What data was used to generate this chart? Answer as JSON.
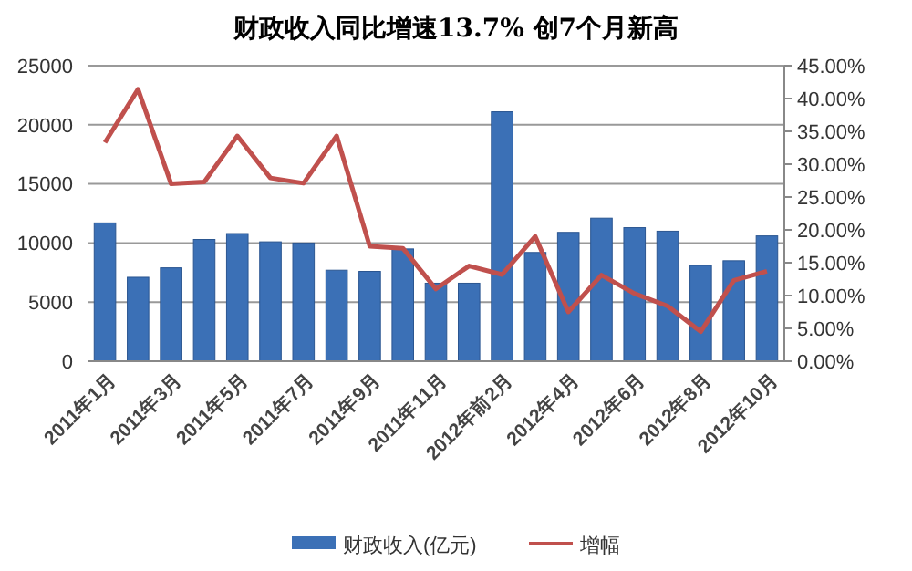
{
  "chart_data": {
    "type": "bar",
    "title": "财政收入同比增速13.7% 创7个月新高",
    "categories": [
      "2011年1月",
      null,
      "2011年3月",
      null,
      "2011年5月",
      null,
      "2011年7月",
      null,
      "2011年9月",
      null,
      "2011年11月",
      null,
      "2012年前2月",
      null,
      "2012年4月",
      null,
      "2012年6月",
      null,
      "2012年8月",
      null,
      "2012年10月"
    ],
    "series": [
      {
        "name": "财政收入(亿元)",
        "color": "#3b70b6",
        "values": [
          11700,
          7100,
          7900,
          10300,
          10800,
          10100,
          10000,
          7700,
          7600,
          9500,
          6600,
          6600,
          21100,
          9200,
          10900,
          12100,
          11300,
          11000,
          8100,
          8500,
          10600
        ]
      },
      {
        "name": "增幅",
        "type": "line",
        "axis": "y2",
        "color": "#c0504d",
        "values": [
          33.3,
          41.4,
          27.0,
          27.3,
          34.3,
          27.9,
          27.1,
          34.3,
          17.5,
          17.2,
          11.0,
          14.5,
          13.2,
          19.0,
          7.5,
          13.1,
          10.3,
          8.4,
          4.5,
          12.3,
          13.7
        ]
      }
    ],
    "ylim": [
      0,
      25000
    ],
    "yticks": [
      0,
      5000,
      10000,
      15000,
      20000,
      25000
    ],
    "y2lim": [
      0,
      45
    ],
    "y2ticks": [
      {
        "value": 0,
        "label": "0.00%"
      },
      {
        "value": 5,
        "label": "5.00%"
      },
      {
        "value": 10,
        "label": "10.00%"
      },
      {
        "value": 15,
        "label": "15.00%"
      },
      {
        "value": 20,
        "label": "20.00%"
      },
      {
        "value": 25,
        "label": "25.00%"
      },
      {
        "value": 30,
        "label": "30.00%"
      },
      {
        "value": 35,
        "label": "35.00%"
      },
      {
        "value": 40,
        "label": "40.00%"
      },
      {
        "value": 45,
        "label": "45.00%"
      }
    ],
    "grid": "y",
    "legend": "bottom",
    "marker": "none"
  }
}
